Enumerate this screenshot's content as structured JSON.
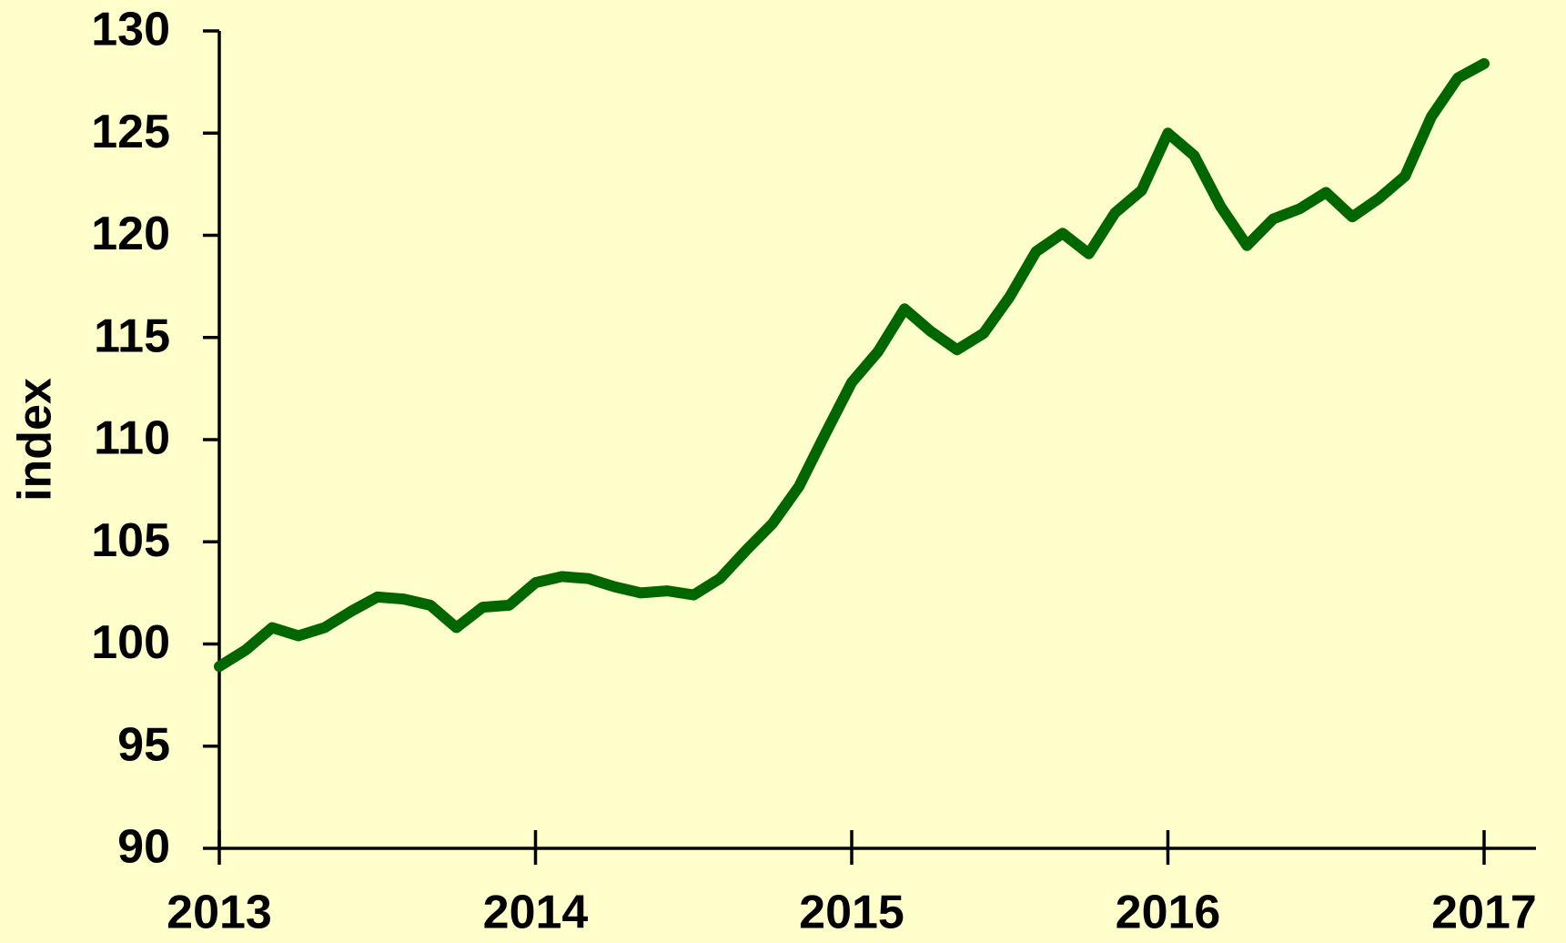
{
  "chart_data": {
    "type": "line",
    "y_label": "index",
    "x": [
      2013.0,
      2013.083,
      2013.167,
      2013.25,
      2013.333,
      2013.417,
      2013.5,
      2013.583,
      2013.667,
      2013.75,
      2013.833,
      2013.917,
      2014.0,
      2014.083,
      2014.167,
      2014.25,
      2014.333,
      2014.417,
      2014.5,
      2014.583,
      2014.667,
      2014.75,
      2014.833,
      2014.917,
      2015.0,
      2015.083,
      2015.167,
      2015.25,
      2015.333,
      2015.417,
      2015.5,
      2015.583,
      2015.667,
      2015.75,
      2015.833,
      2015.917,
      2016.0,
      2016.083,
      2016.167,
      2016.25,
      2016.333,
      2016.417,
      2016.5,
      2016.583,
      2016.667,
      2016.75,
      2016.833,
      2016.917,
      2017.0
    ],
    "series": [
      {
        "color": "#006600",
        "values": [
          98.9,
          99.7,
          100.8,
          100.4,
          100.8,
          101.6,
          102.3,
          102.2,
          101.9,
          100.8,
          101.8,
          101.9,
          103.0,
          103.3,
          103.2,
          102.8,
          102.5,
          102.6,
          102.4,
          103.2,
          104.6,
          105.9,
          107.7,
          110.3,
          112.8,
          114.3,
          116.4,
          115.3,
          114.4,
          115.2,
          117.0,
          119.2,
          120.1,
          119.1,
          121.1,
          122.2,
          125.0,
          123.9,
          121.4,
          119.5,
          120.8,
          121.3,
          122.1,
          120.9,
          121.8,
          122.9,
          125.8,
          127.7,
          128.4
        ]
      }
    ],
    "xlim": [
      2013,
      2017
    ],
    "xticks": [
      2013,
      2014,
      2015,
      2016,
      2017
    ],
    "ylim": [
      90,
      130
    ],
    "yticks": [
      90,
      95,
      100,
      105,
      110,
      115,
      120,
      125,
      130
    ]
  }
}
